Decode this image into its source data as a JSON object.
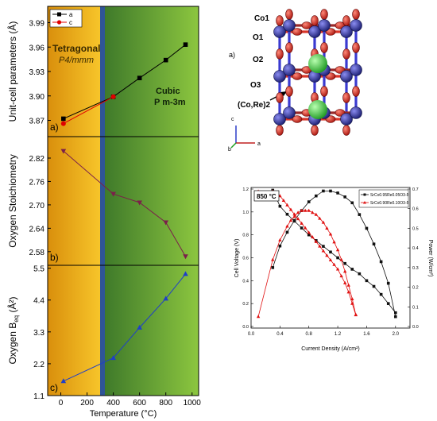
{
  "colors": {
    "tetragonal_bg": "#f2b81c",
    "cubic_bg": "#7dba3a",
    "divider": "#2f5597",
    "series_a": "#000000",
    "series_c": "#e00000",
    "stoich": "#7b1f4a",
    "beq": "#1f3fc8",
    "fc_voltage": "#111111",
    "fc_power": "#e01010",
    "atom_oxygen": "#c0281e",
    "atom_cation": "#2a2fa0",
    "atom_sr": "#39c03a",
    "bond": "#d8362a"
  },
  "left_panel": {
    "x_axis_label": "Temperature (°C)",
    "x_ticks": [
      "0",
      "200",
      "400",
      "600",
      "800",
      "1000"
    ],
    "phase_labels": {
      "tetragonal": "Tetragonal",
      "tetragonal_group": "P4/mmm",
      "cubic": "Cubic",
      "cubic_group": "P m-3m"
    }
  },
  "right_structure": {
    "panel_letter": "a)",
    "labels": [
      "Co1",
      "O1",
      "O2",
      "O3",
      "(Co,Re)2"
    ],
    "axis_labels": {
      "c": "c",
      "a": "a",
      "b": "b"
    }
  },
  "chart_data": [
    {
      "id": "lattice",
      "type": "line",
      "ylabel": "Unit-cell parameters (Å)",
      "panel_letter": "a)",
      "ylim": [
        3.85,
        4.01
      ],
      "yticks": [
        "3.87",
        "3.90",
        "3.93",
        "3.96",
        "3.99"
      ],
      "xlim": [
        -100,
        1050
      ],
      "legend": [
        "a",
        "c"
      ],
      "series": [
        {
          "name": "a",
          "x": [
            20,
            400,
            600,
            800,
            950
          ],
          "y": [
            3.872,
            3.899,
            3.922,
            3.944,
            3.963
          ]
        },
        {
          "name": "c",
          "x": [
            20,
            400
          ],
          "y": [
            3.866,
            3.899
          ]
        }
      ]
    },
    {
      "id": "stoichiometry",
      "type": "line",
      "ylabel": "Oxygen Stoichiometry",
      "panel_letter": "b)",
      "ylim": [
        2.545,
        2.875
      ],
      "yticks": [
        "2.58",
        "2.64",
        "2.70",
        "2.76",
        "2.82"
      ],
      "xlim": [
        -100,
        1050
      ],
      "series": [
        {
          "x": [
            20,
            400,
            600,
            800,
            950
          ],
          "y": [
            2.838,
            2.728,
            2.706,
            2.655,
            2.568
          ]
        }
      ]
    },
    {
      "id": "beq",
      "type": "line",
      "ylabel": "Oxygen B",
      "ylabel_sub": "eq",
      "ylabel_unit": " (Å²)",
      "panel_letter": "c)",
      "ylim": [
        1.1,
        5.6
      ],
      "yticks": [
        "1.1",
        "2.2",
        "3.3",
        "4.4",
        "5.5"
      ],
      "xlim": [
        -100,
        1050
      ],
      "series": [
        {
          "x": [
            20,
            400,
            600,
            800,
            950
          ],
          "y": [
            1.6,
            2.4,
            3.45,
            4.45,
            5.3
          ]
        }
      ]
    },
    {
      "id": "fuel_cell",
      "type": "line",
      "temp_label": "850 °C",
      "xlabel": "Current Density (A/cm²)",
      "ylabel_left": "Cell Voltage (V)",
      "ylabel_right": "Power (W/cm²)",
      "xlim": [
        0,
        2.2
      ],
      "xticks": [
        "0.0",
        "0.4",
        "0.8",
        "1.2",
        "1.6",
        "2.0"
      ],
      "ylim_left": [
        0,
        1.2
      ],
      "yticks_left": [
        "0.0",
        "0.2",
        "0.4",
        "0.6",
        "0.8",
        "1.0",
        "1.2"
      ],
      "ylim_right": [
        0,
        0.7
      ],
      "yticks_right": [
        "0.0",
        "0.1",
        "0.2",
        "0.3",
        "0.4",
        "0.5",
        "0.6",
        "0.7"
      ],
      "legend": [
        "SrCo0.95Re0.05O3-δ",
        "SrCo0.90Re0.10O3-δ"
      ],
      "series": [
        {
          "name": "SrCo0.95Re0.05O3-δ",
          "voltage": {
            "x": [
              0.3,
              0.35,
              0.4,
              0.5,
              0.6,
              0.7,
              0.8,
              0.9,
              1.0,
              1.1,
              1.2,
              1.3,
              1.4,
              1.5,
              1.6,
              1.7,
              1.8,
              1.9,
              2.0
            ],
            "y": [
              1.19,
              1.12,
              1.05,
              0.98,
              0.92,
              0.86,
              0.8,
              0.75,
              0.7,
              0.65,
              0.6,
              0.55,
              0.5,
              0.46,
              0.4,
              0.35,
              0.28,
              0.2,
              0.12
            ]
          },
          "power": {
            "x": [
              0.3,
              0.4,
              0.5,
              0.6,
              0.7,
              0.8,
              0.9,
              1.0,
              1.1,
              1.2,
              1.3,
              1.4,
              1.5,
              1.6,
              1.7,
              1.8,
              1.9,
              2.0
            ],
            "y": [
              0.3,
              0.41,
              0.48,
              0.54,
              0.59,
              0.635,
              0.665,
              0.69,
              0.69,
              0.68,
              0.66,
              0.63,
              0.57,
              0.5,
              0.42,
              0.33,
              0.22,
              0.05
            ]
          }
        },
        {
          "name": "SrCo0.90Re0.10O3-δ",
          "voltage": {
            "x": [
              0.1,
              0.3,
              0.4,
              0.45,
              0.5,
              0.55,
              0.6,
              0.65,
              0.7,
              0.75,
              0.8,
              0.85,
              0.9,
              0.95,
              1.0,
              1.05,
              1.1,
              1.15,
              1.2,
              1.25,
              1.3,
              1.35,
              1.4,
              1.45
            ],
            "y": [
              1.18,
              1.18,
              1.14,
              1.1,
              1.06,
              1.02,
              0.98,
              0.94,
              0.9,
              0.86,
              0.82,
              0.78,
              0.74,
              0.7,
              0.66,
              0.62,
              0.58,
              0.54,
              0.5,
              0.44,
              0.38,
              0.3,
              0.2,
              0.1
            ]
          },
          "power": {
            "x": [
              0.1,
              0.3,
              0.4,
              0.5,
              0.55,
              0.6,
              0.65,
              0.7,
              0.75,
              0.8,
              0.85,
              0.9,
              0.95,
              1.0,
              1.05,
              1.1,
              1.15,
              1.2,
              1.25,
              1.3,
              1.35,
              1.4,
              1.45
            ],
            "y": [
              0.05,
              0.34,
              0.44,
              0.51,
              0.54,
              0.56,
              0.58,
              0.59,
              0.59,
              0.59,
              0.58,
              0.57,
              0.55,
              0.53,
              0.5,
              0.47,
              0.43,
              0.39,
              0.34,
              0.28,
              0.21,
              0.14,
              0.06
            ]
          }
        }
      ]
    }
  ]
}
